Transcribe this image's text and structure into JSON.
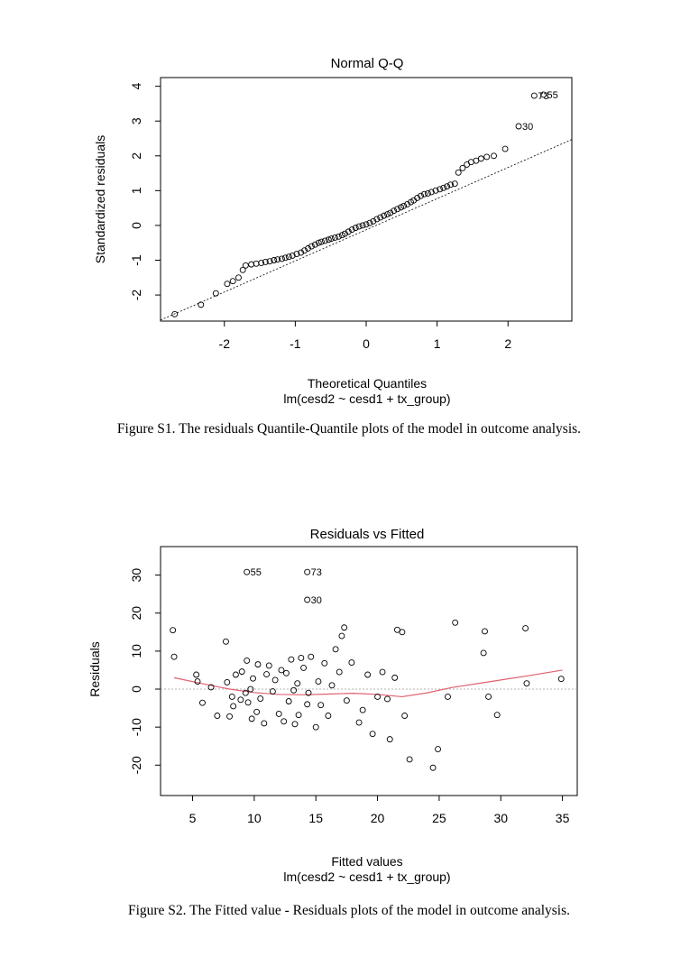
{
  "chart_data": [
    {
      "type": "scatter",
      "title": "Normal Q-Q",
      "xlabel": "Theoretical Quantiles",
      "subxlabel": "lm(cesd2 ~ cesd1 + tx_group)",
      "ylabel": "Standardized residuals",
      "xlim": [
        -2.9,
        2.9
      ],
      "ylim": [
        -2.75,
        4.25
      ],
      "xticks": [
        -2,
        -1,
        0,
        1,
        2
      ],
      "yticks": [
        -2,
        -1,
        0,
        1,
        2,
        3,
        4
      ],
      "reference_line": {
        "x": [
          -2.9,
          2.9
        ],
        "y": [
          -2.72,
          2.47
        ]
      },
      "labeled_points": [
        {
          "label": "30",
          "x": 2.15,
          "y": 2.85
        },
        {
          "label": "73",
          "x": 2.37,
          "y": 3.73
        },
        {
          "label": "55",
          "x": 2.5,
          "y": 3.76
        }
      ],
      "caption": "Figure S1. The residuals Quantile-Quantile plots of the model in outcome analysis.",
      "series": [
        {
          "x": [
            -2.7,
            -2.33,
            -2.12,
            -1.96,
            -1.88,
            -1.8,
            -1.74,
            -1.7,
            -1.62,
            -1.55,
            -1.48,
            -1.42,
            -1.36,
            -1.3,
            -1.25,
            -1.19,
            -1.14,
            -1.09,
            -1.04,
            -0.98,
            -0.92,
            -0.87,
            -0.82,
            -0.77,
            -0.72,
            -0.67,
            -0.63,
            -0.58,
            -0.53,
            -0.49,
            -0.44,
            -0.39,
            -0.34,
            -0.3,
            -0.25,
            -0.2,
            -0.15,
            -0.1,
            -0.05,
            0.0,
            0.05,
            0.1,
            0.15,
            0.2,
            0.25,
            0.3,
            0.34,
            0.39,
            0.44,
            0.49,
            0.53,
            0.58,
            0.63,
            0.67,
            0.72,
            0.77,
            0.82,
            0.87,
            0.92,
            0.98,
            1.04,
            1.09,
            1.14,
            1.19,
            1.25,
            1.3,
            1.36,
            1.42,
            1.48,
            1.55,
            1.62,
            1.7,
            1.8,
            1.96
          ],
          "y": [
            -2.55,
            -2.28,
            -1.95,
            -1.68,
            -1.6,
            -1.5,
            -1.28,
            -1.15,
            -1.12,
            -1.1,
            -1.08,
            -1.05,
            -1.03,
            -1.0,
            -0.98,
            -0.96,
            -0.93,
            -0.9,
            -0.87,
            -0.82,
            -0.78,
            -0.72,
            -0.66,
            -0.6,
            -0.55,
            -0.5,
            -0.47,
            -0.44,
            -0.41,
            -0.38,
            -0.35,
            -0.32,
            -0.28,
            -0.24,
            -0.18,
            -0.12,
            -0.07,
            -0.03,
            0.0,
            0.03,
            0.07,
            0.12,
            0.18,
            0.23,
            0.28,
            0.32,
            0.36,
            0.42,
            0.47,
            0.52,
            0.56,
            0.61,
            0.67,
            0.72,
            0.79,
            0.85,
            0.9,
            0.92,
            0.96,
            1.0,
            1.04,
            1.08,
            1.12,
            1.17,
            1.2,
            1.52,
            1.65,
            1.75,
            1.82,
            1.86,
            1.92,
            1.97,
            2.0,
            2.2
          ]
        }
      ]
    },
    {
      "type": "scatter",
      "title": "Residuals vs Fitted",
      "xlabel": "Fitted values",
      "subxlabel": "lm(cesd2 ~ cesd1 + tx_group)",
      "ylabel": "Residuals",
      "xlim": [
        2.4,
        36.2
      ],
      "ylim": [
        -28,
        37.5
      ],
      "xticks": [
        5,
        10,
        15,
        20,
        25,
        30,
        35
      ],
      "yticks": [
        -20,
        -10,
        0,
        10,
        20,
        30
      ],
      "labeled_points": [
        {
          "label": "55",
          "x": 9.4,
          "y": 30.8
        },
        {
          "label": "73",
          "x": 14.3,
          "y": 30.8
        },
        {
          "label": "30",
          "x": 14.3,
          "y": 23.5
        }
      ],
      "smooth_line": {
        "x": [
          3.5,
          6,
          8,
          10,
          12,
          14,
          16,
          18,
          20,
          22,
          24,
          26,
          28,
          30,
          32,
          35
        ],
        "y": [
          3.0,
          1.3,
          0.0,
          -0.9,
          -1.4,
          -1.5,
          -1.3,
          -1.1,
          -1.4,
          -2.0,
          -1.0,
          0.4,
          1.4,
          2.4,
          3.4,
          5.0
        ]
      },
      "caption": "Figure S2. The Fitted value - Residuals plots of the model in outcome analysis.",
      "series": [
        {
          "x": [
            3.4,
            3.5,
            5.3,
            5.4,
            5.8,
            6.5,
            7.0,
            7.7,
            7.8,
            8.0,
            8.2,
            8.3,
            8.5,
            8.9,
            9.0,
            9.3,
            9.4,
            9.5,
            9.7,
            9.8,
            9.9,
            10.2,
            10.3,
            10.5,
            10.8,
            11.0,
            11.2,
            11.5,
            11.7,
            12.0,
            12.2,
            12.4,
            12.6,
            12.8,
            13.0,
            13.2,
            13.3,
            13.5,
            13.6,
            13.8,
            14.0,
            14.3,
            14.4,
            14.6,
            15.0,
            15.2,
            15.4,
            15.7,
            16.0,
            16.3,
            16.6,
            16.9,
            17.1,
            17.3,
            17.5,
            17.9,
            18.5,
            18.8,
            19.2,
            19.6,
            20.0,
            20.4,
            20.8,
            21.0,
            21.4,
            21.6,
            22.0,
            22.2,
            22.6,
            24.5,
            24.9,
            25.7,
            26.3,
            28.6,
            28.7,
            29.0,
            29.7,
            32.0,
            32.1,
            34.9
          ],
          "y": [
            15.5,
            8.5,
            3.8,
            2.0,
            -3.6,
            0.5,
            -7.0,
            12.5,
            1.8,
            -7.2,
            -2.0,
            -4.5,
            3.8,
            -2.8,
            4.6,
            -1.0,
            7.5,
            -3.5,
            0.0,
            -7.8,
            2.8,
            -6.0,
            6.5,
            -2.5,
            -9.0,
            3.9,
            6.2,
            -0.6,
            2.4,
            -6.5,
            5.0,
            -8.5,
            4.2,
            -3.2,
            7.8,
            -0.3,
            -9.2,
            1.5,
            -6.8,
            8.2,
            5.6,
            -4.0,
            -1.0,
            8.5,
            -10.0,
            2.0,
            -4.2,
            6.8,
            -7.0,
            1.0,
            10.5,
            4.5,
            14.0,
            16.2,
            -3.0,
            7.0,
            -8.8,
            -5.5,
            3.8,
            -11.8,
            -2.0,
            4.5,
            -2.6,
            -13.2,
            3.0,
            15.6,
            15.0,
            -7.0,
            -18.5,
            -20.7,
            -15.8,
            -2.0,
            17.5,
            9.5,
            15.2,
            -2.0,
            -6.8,
            16.0,
            1.5,
            2.7
          ]
        }
      ]
    }
  ]
}
